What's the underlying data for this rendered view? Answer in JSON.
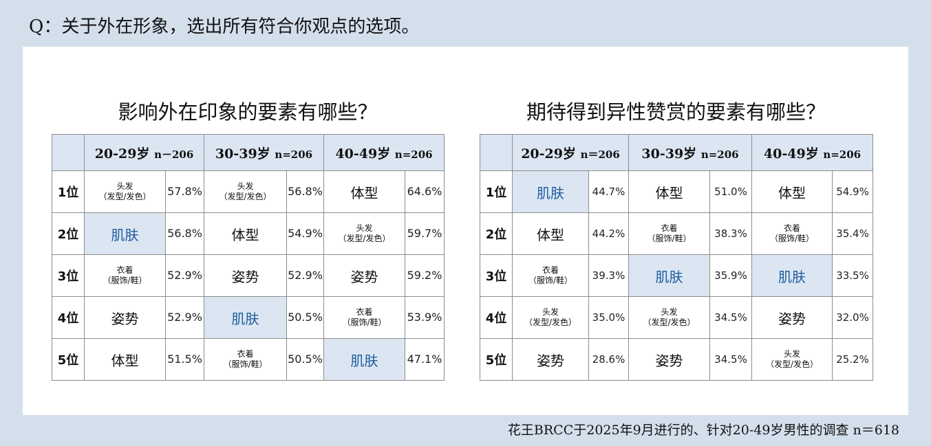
{
  "question": "Q：关于外在形象，选出所有符合你观点的选项。",
  "footer": "花王BRCC于2025年9月进行的、针对20-49岁男性的调查 n＝618",
  "colors": {
    "page_bg": "#d4dfec",
    "header_bg": "#dce6f2",
    "highlight_bg": "#dce6f2",
    "highlight_text": "#1f5e9f"
  },
  "left": {
    "title": "影响外在印象的要素有哪些？",
    "columns": [
      {
        "age": "20-29岁",
        "n": "n－206"
      },
      {
        "age": "30-39岁",
        "n": "n=206"
      },
      {
        "age": "40-49岁",
        "n": "n=206"
      }
    ],
    "rows": [
      {
        "rank": "1位",
        "cells": [
          {
            "l1": "头发",
            "l2": "（发型/发色）",
            "pct": "57.8%",
            "hl": false
          },
          {
            "l1": "头发",
            "l2": "（发型/发色）",
            "pct": "56.8%",
            "hl": false
          },
          {
            "text": "体型",
            "pct": "64.6%",
            "hl": false
          }
        ]
      },
      {
        "rank": "2位",
        "cells": [
          {
            "text": "肌肤",
            "pct": "56.8%",
            "hl": true
          },
          {
            "text": "体型",
            "pct": "54.9%",
            "hl": false
          },
          {
            "l1": "头发",
            "l2": "（发型/发色）",
            "pct": "59.7%",
            "hl": false
          }
        ]
      },
      {
        "rank": "3位",
        "cells": [
          {
            "l1": "衣着",
            "l2": "（服饰/鞋）",
            "pct": "52.9%",
            "hl": false
          },
          {
            "text": "姿势",
            "pct": "52.9%",
            "hl": false
          },
          {
            "text": "姿势",
            "pct": "59.2%",
            "hl": false
          }
        ]
      },
      {
        "rank": "4位",
        "cells": [
          {
            "text": "姿势",
            "pct": "52.9%",
            "hl": false
          },
          {
            "text": "肌肤",
            "pct": "50.5%",
            "hl": true
          },
          {
            "l1": "衣着",
            "l2": "（服饰/鞋）",
            "pct": "53.9%",
            "hl": false
          }
        ]
      },
      {
        "rank": "5位",
        "cells": [
          {
            "text": "体型",
            "pct": "51.5%",
            "hl": false
          },
          {
            "l1": "衣着",
            "l2": "（服饰/鞋）",
            "pct": "50.5%",
            "hl": false
          },
          {
            "text": "肌肤",
            "pct": "47.1%",
            "hl": true
          }
        ]
      }
    ]
  },
  "right": {
    "title": "期待得到异性赞赏的要素有哪些？",
    "columns": [
      {
        "age": "20-29岁",
        "n": "n＝206"
      },
      {
        "age": "30-39岁",
        "n": "n=206"
      },
      {
        "age": "40-49岁",
        "n": "n=206"
      }
    ],
    "rows": [
      {
        "rank": "1位",
        "cells": [
          {
            "text": "肌肤",
            "pct": "44.7%",
            "hl": true
          },
          {
            "text": "体型",
            "pct": "51.0%",
            "hl": false
          },
          {
            "text": "体型",
            "pct": "54.9%",
            "hl": false
          }
        ]
      },
      {
        "rank": "2位",
        "cells": [
          {
            "text": "体型",
            "pct": "44.2%",
            "hl": false
          },
          {
            "l1": "衣着",
            "l2": "（服饰/鞋）",
            "pct": "38.3%",
            "hl": false
          },
          {
            "l1": "衣着",
            "l2": "（服饰/鞋）",
            "pct": "35.4%",
            "hl": false
          }
        ]
      },
      {
        "rank": "3位",
        "cells": [
          {
            "l1": "衣着",
            "l2": "（服饰/鞋）",
            "pct": "39.3%",
            "hl": false
          },
          {
            "text": "肌肤",
            "pct": "35.9%",
            "hl": true
          },
          {
            "text": "肌肤",
            "pct": "33.5%",
            "hl": true
          }
        ]
      },
      {
        "rank": "4位",
        "cells": [
          {
            "l1": "头发",
            "l2": "（发型/发色）",
            "pct": "35.0%",
            "hl": false
          },
          {
            "l1": "头发",
            "l2": "（发型/发色）",
            "pct": "34.5%",
            "hl": false
          },
          {
            "text": "姿势",
            "pct": "32.0%",
            "hl": false
          }
        ]
      },
      {
        "rank": "5位",
        "cells": [
          {
            "text": "姿势",
            "pct": "28.6%",
            "hl": false
          },
          {
            "text": "姿势",
            "pct": "34.5%",
            "hl": false
          },
          {
            "l1": "头发",
            "l2": "（发型/发色）",
            "pct": "25.2%",
            "hl": false
          }
        ]
      }
    ]
  }
}
